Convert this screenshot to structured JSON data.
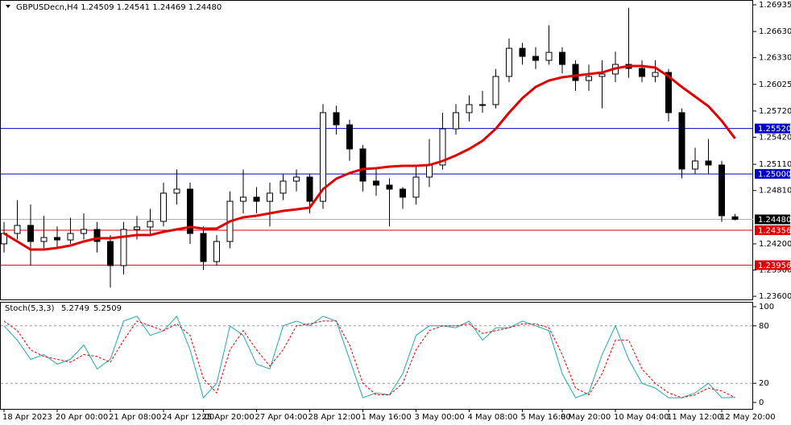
{
  "chart_data": {
    "type": "candlestick",
    "title": "GBPUSDecn,H4  1.24509 1.24541 1.24469 1.24480",
    "categories": [
      "18 Apr 2023",
      null,
      null,
      null,
      "20 Apr 00:00",
      null,
      null,
      null,
      "21 Apr 08:00",
      null,
      null,
      null,
      "24 Apr 12:00",
      null,
      null,
      "25 Apr 20:00",
      null,
      null,
      null,
      "27 Apr 04:00",
      null,
      null,
      null,
      "28 Apr 12:00",
      null,
      null,
      null,
      "1 May 16:00",
      null,
      null,
      null,
      "3 May 00:00",
      null,
      null,
      null,
      "4 May 08:00",
      null,
      null,
      null,
      "5 May 16:00",
      null,
      null,
      "8 May 20:00",
      null,
      null,
      null,
      "10 May 04:00",
      null,
      null,
      null,
      "11 May 12:00",
      null,
      null,
      null,
      "12 May 20:00",
      null
    ],
    "ohlc": [
      [
        1.242,
        1.2445,
        1.241,
        1.24319
      ],
      [
        1.24319,
        1.247,
        1.2425,
        1.24411
      ],
      [
        1.24411,
        1.2465,
        1.2395,
        1.24227
      ],
      [
        1.24227,
        1.2452,
        1.2415,
        1.24273
      ],
      [
        1.24273,
        1.244,
        1.2415,
        1.24245
      ],
      [
        1.24245,
        1.245,
        1.242,
        1.24319
      ],
      [
        1.24319,
        1.2455,
        1.2425,
        1.24365
      ],
      [
        1.24365,
        1.2445,
        1.241,
        1.24227
      ],
      [
        1.24227,
        1.243,
        1.237,
        1.23951
      ],
      [
        1.23951,
        1.2445,
        1.2385,
        1.24365
      ],
      [
        1.24365,
        1.2452,
        1.2425,
        1.24393
      ],
      [
        1.24393,
        1.246,
        1.243,
        1.24457
      ],
      [
        1.24457,
        1.249,
        1.244,
        1.2478
      ],
      [
        1.2478,
        1.2505,
        1.2465,
        1.24826
      ],
      [
        1.24826,
        1.249,
        1.242,
        1.24319
      ],
      [
        1.24319,
        1.244,
        1.239,
        1.23997
      ],
      [
        1.23997,
        1.243,
        1.2395,
        1.24227
      ],
      [
        1.24227,
        1.248,
        1.2415,
        1.24687
      ],
      [
        1.24687,
        1.2505,
        1.2455,
        1.24734
      ],
      [
        1.24734,
        1.2485,
        1.2455,
        1.24687
      ],
      [
        1.24687,
        1.249,
        1.244,
        1.2478
      ],
      [
        1.2478,
        1.25,
        1.247,
        1.24918
      ],
      [
        1.24918,
        1.2505,
        1.248,
        1.24964
      ],
      [
        1.24964,
        1.25,
        1.2455,
        1.24687
      ],
      [
        1.24687,
        1.258,
        1.246,
        1.25701
      ],
      [
        1.25701,
        1.2578,
        1.2545,
        1.25562
      ],
      [
        1.25562,
        1.2562,
        1.2515,
        1.25286
      ],
      [
        1.25286,
        1.2533,
        1.248,
        1.24918
      ],
      [
        1.24918,
        1.2505,
        1.2475,
        1.24872
      ],
      [
        1.24872,
        1.2495,
        1.244,
        1.24826
      ],
      [
        1.24826,
        1.2485,
        1.246,
        1.24734
      ],
      [
        1.24734,
        1.251,
        1.2465,
        1.24964
      ],
      [
        1.24964,
        1.254,
        1.2485,
        1.25102
      ],
      [
        1.25102,
        1.257,
        1.2505,
        1.25516
      ],
      [
        1.25516,
        1.258,
        1.2545,
        1.25701
      ],
      [
        1.25701,
        1.259,
        1.256,
        1.25793
      ],
      [
        1.25793,
        1.2595,
        1.257,
        1.25793
      ],
      [
        1.25793,
        1.262,
        1.2575,
        1.26115
      ],
      [
        1.26115,
        1.2655,
        1.2605,
        1.26437
      ],
      [
        1.26437,
        1.265,
        1.2625,
        1.26345
      ],
      [
        1.26345,
        1.2645,
        1.262,
        1.26299
      ],
      [
        1.26299,
        1.267,
        1.2625,
        1.26391
      ],
      [
        1.26391,
        1.2645,
        1.2615,
        1.26253
      ],
      [
        1.26253,
        1.263,
        1.2595,
        1.26069
      ],
      [
        1.26069,
        1.2625,
        1.2595,
        1.26115
      ],
      [
        1.26115,
        1.263,
        1.2575,
        1.26143
      ],
      [
        1.26143,
        1.264,
        1.2605,
        1.26253
      ],
      [
        1.26253,
        1.269,
        1.261,
        1.26207
      ],
      [
        1.26207,
        1.263,
        1.2605,
        1.26115
      ],
      [
        1.26115,
        1.263,
        1.2605,
        1.26161
      ],
      [
        1.26161,
        1.262,
        1.256,
        1.25701
      ],
      [
        1.25701,
        1.2575,
        1.2495,
        1.25056
      ],
      [
        1.25056,
        1.253,
        1.25,
        1.25148
      ],
      [
        1.25148,
        1.254,
        1.25,
        1.25102
      ],
      [
        1.25102,
        1.2515,
        1.2445,
        1.24522
      ],
      [
        1.24509,
        1.24541,
        1.24469,
        1.2448
      ]
    ],
    "ma": {
      "color": "#e00000",
      "values": [
        1.24319,
        1.24227,
        1.24135,
        1.24135,
        1.24153,
        1.24181,
        1.24227,
        1.24264,
        1.24264,
        1.24282,
        1.24301,
        1.24301,
        1.24338,
        1.24365,
        1.24393,
        1.24374,
        1.24374,
        1.24457,
        1.24503,
        1.24522,
        1.24549,
        1.24577,
        1.24595,
        1.24614,
        1.24826,
        1.24945,
        1.2501,
        1.25056,
        1.25065,
        1.25084,
        1.25093,
        1.25093,
        1.25102,
        1.25148,
        1.25212,
        1.25286,
        1.25378,
        1.25516,
        1.25701,
        1.25866,
        1.25995,
        1.26069,
        1.26106,
        1.26124,
        1.26143,
        1.26161,
        1.26207,
        1.26235,
        1.26235,
        1.26216,
        1.26115,
        1.25995,
        1.25885,
        1.25774,
        1.25608,
        1.25406
      ]
    },
    "ylim": [
      1.23564,
      1.2699
    ],
    "yticks": [
      1.26935,
      {
        "value": 1.2663,
        "label": "1.26630"
      },
      {
        "value": 1.2633,
        "label": "1.26330"
      },
      1.26025,
      {
        "value": 1.2572,
        "label": "1.25720"
      },
      {
        "value": 1.2542,
        "label": "1.25420"
      },
      {
        "value": 1.2511,
        "label": "1.25110"
      },
      {
        "value": 1.2481,
        "label": "1.24810"
      },
      {
        "value": 1.242,
        "label": "1.24200"
      },
      {
        "value": 1.239,
        "label": "1.23900"
      },
      {
        "value": 1.236,
        "label": "1.23600"
      }
    ],
    "levels": [
      {
        "value": 1.2552,
        "label": "1.25520",
        "color": "#0000c8"
      },
      {
        "value": 1.25,
        "label": "1.25000",
        "color": "#0000c8"
      },
      {
        "value": 1.24356,
        "label": "1.24356",
        "color": "#e00000"
      },
      {
        "value": 1.23956,
        "label": "1.23956",
        "color": "#e00000"
      }
    ],
    "current_price": {
      "value": 1.2448,
      "label": "1.24480",
      "color": "#000000"
    },
    "stoch": {
      "title": "Stoch(5,3,3)",
      "ylim": [
        0,
        100
      ],
      "yticks": [
        100,
        80,
        20,
        0
      ],
      "levels": [
        80,
        20
      ],
      "main": {
        "color": "#20a8b0",
        "values": [
          80,
          65,
          45,
          50,
          40,
          45,
          60,
          35,
          45,
          85,
          90,
          70,
          75,
          90,
          55,
          5,
          20,
          80,
          70,
          40,
          35,
          80,
          85,
          80,
          90,
          85,
          45,
          5,
          10,
          8,
          30,
          70,
          80,
          80,
          78,
          85,
          65,
          78,
          78,
          85,
          80,
          75,
          30,
          5,
          10,
          50,
          80,
          45,
          20,
          15,
          5,
          5,
          10,
          20,
          5,
          5.2749
        ]
      },
      "signal": {
        "color": "#e00000",
        "values": [
          85,
          75,
          55,
          48,
          45,
          42,
          50,
          48,
          42,
          65,
          85,
          80,
          75,
          82,
          70,
          25,
          10,
          55,
          75,
          55,
          38,
          55,
          80,
          82,
          85,
          85,
          60,
          20,
          8,
          8,
          20,
          55,
          75,
          80,
          80,
          82,
          72,
          75,
          78,
          82,
          82,
          78,
          50,
          15,
          8,
          30,
          65,
          65,
          35,
          20,
          10,
          5,
          8,
          15,
          12,
          5.2509
        ]
      }
    }
  }
}
